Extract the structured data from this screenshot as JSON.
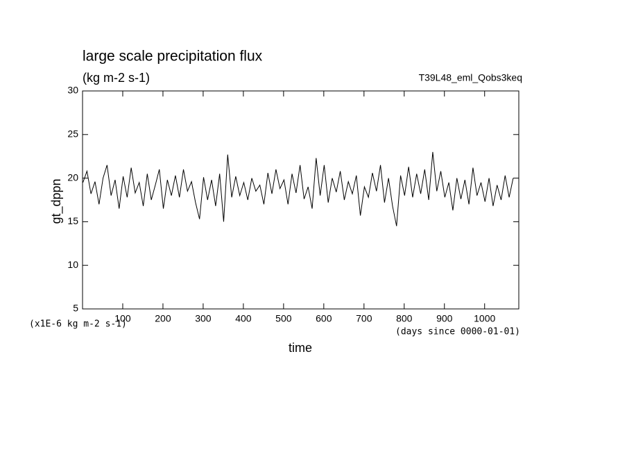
{
  "chart_data": {
    "type": "line",
    "title": "large scale precipitation flux",
    "subtitle": "(kg m-2 s-1)",
    "annotation": "T39L48_eml_Qobs3keq",
    "y_label": "gt_dppn",
    "x_label": "time",
    "y_unit": "(x1E-6 kg m-2 s-1)",
    "x_unit": "(days since 0000-01-01)",
    "xlim": [
      0,
      1085
    ],
    "ylim": [
      5,
      30
    ],
    "xticks": [
      100,
      200,
      300,
      400,
      500,
      600,
      700,
      800,
      900,
      1000
    ],
    "yticks": [
      5,
      10,
      15,
      20,
      25,
      30
    ],
    "series": [
      {
        "name": "gt_dppn",
        "color": "#000000",
        "x": [
          1,
          11,
          21,
          31,
          41,
          51,
          61,
          71,
          81,
          91,
          101,
          111,
          121,
          131,
          141,
          151,
          161,
          171,
          181,
          191,
          201,
          211,
          221,
          231,
          241,
          251,
          261,
          271,
          281,
          291,
          301,
          311,
          321,
          331,
          341,
          351,
          361,
          371,
          381,
          391,
          401,
          411,
          421,
          431,
          441,
          451,
          461,
          471,
          481,
          491,
          501,
          511,
          521,
          531,
          541,
          551,
          561,
          571,
          581,
          591,
          601,
          611,
          621,
          631,
          641,
          651,
          661,
          671,
          681,
          691,
          701,
          711,
          721,
          731,
          741,
          751,
          761,
          771,
          781,
          791,
          801,
          811,
          821,
          831,
          841,
          851,
          861,
          871,
          881,
          891,
          901,
          911,
          921,
          931,
          941,
          951,
          961,
          971,
          981,
          991,
          1001,
          1011,
          1021,
          1031,
          1041,
          1051,
          1061,
          1071
        ],
        "values": [
          19.5,
          20.8,
          18.2,
          19.6,
          17.0,
          20.0,
          21.5,
          18.0,
          19.8,
          16.5,
          20.2,
          17.8,
          21.2,
          18.3,
          19.5,
          16.8,
          20.5,
          17.5,
          19.2,
          21.0,
          16.5,
          19.8,
          18.0,
          20.3,
          17.8,
          21.0,
          18.5,
          19.6,
          17.2,
          15.3,
          20.1,
          17.5,
          19.8,
          16.8,
          20.5,
          15.0,
          22.7,
          17.8,
          20.2,
          18.0,
          19.5,
          17.5,
          20.0,
          18.5,
          19.2,
          17.0,
          20.6,
          18.2,
          21.0,
          18.8,
          19.8,
          17.0,
          20.5,
          18.3,
          21.5,
          17.6,
          19.0,
          16.5,
          22.3,
          18.0,
          21.5,
          17.2,
          20.0,
          18.4,
          20.8,
          17.5,
          19.6,
          18.2,
          20.3,
          15.7,
          19.0,
          17.8,
          20.6,
          18.5,
          21.5,
          17.2,
          20.0,
          16.8,
          14.5,
          20.3,
          18.0,
          21.3,
          17.8,
          20.5,
          18.2,
          21.0,
          17.5,
          23.0,
          18.5,
          20.8,
          17.8,
          19.5,
          16.3,
          20.0,
          17.6,
          19.8,
          17.0,
          21.2,
          18.0,
          19.5,
          17.3,
          20.0,
          16.8,
          19.2,
          17.5,
          20.3,
          17.8,
          20.0
        ]
      }
    ]
  }
}
